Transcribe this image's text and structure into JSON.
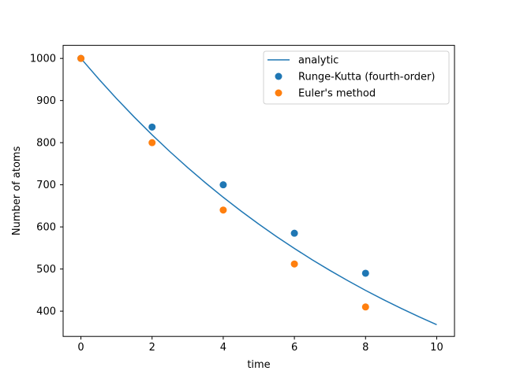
{
  "chart_data": {
    "type": "scatter",
    "title": "",
    "xlabel": "time",
    "ylabel": "Number of atoms",
    "xlim": [
      -0.5,
      10.5
    ],
    "ylim": [
      340,
      1031
    ],
    "x_ticks": [
      0,
      2,
      4,
      6,
      8,
      10
    ],
    "y_ticks": [
      400,
      500,
      600,
      700,
      800,
      900,
      1000
    ],
    "grid": false,
    "legend_position": "top-right",
    "series": [
      {
        "name": "analytic",
        "kind": "line",
        "color": "#1f77b4",
        "x": [
          0,
          0.5,
          1,
          1.5,
          2,
          2.5,
          3,
          3.5,
          4,
          4.5,
          5,
          5.5,
          6,
          6.5,
          7,
          7.5,
          8,
          8.5,
          9,
          9.5,
          10
        ],
        "y": [
          1000,
          951.2,
          904.8,
          860.7,
          818.7,
          778.8,
          740.8,
          704.7,
          670.3,
          637.6,
          606.5,
          576.9,
          548.8,
          522.0,
          496.6,
          472.4,
          449.3,
          427.4,
          406.6,
          386.7,
          367.9
        ]
      },
      {
        "name": "Runge-Kutta (fourth-order)",
        "kind": "scatter",
        "color": "#1f77b4",
        "x": [
          0,
          2,
          4,
          6,
          8
        ],
        "y": [
          1000,
          837,
          700,
          585,
          490
        ]
      },
      {
        "name": "Euler's method",
        "kind": "scatter",
        "color": "#ff7f0e",
        "x": [
          0,
          2,
          4,
          6,
          8
        ],
        "y": [
          1000,
          800,
          640,
          512,
          410
        ]
      }
    ]
  }
}
